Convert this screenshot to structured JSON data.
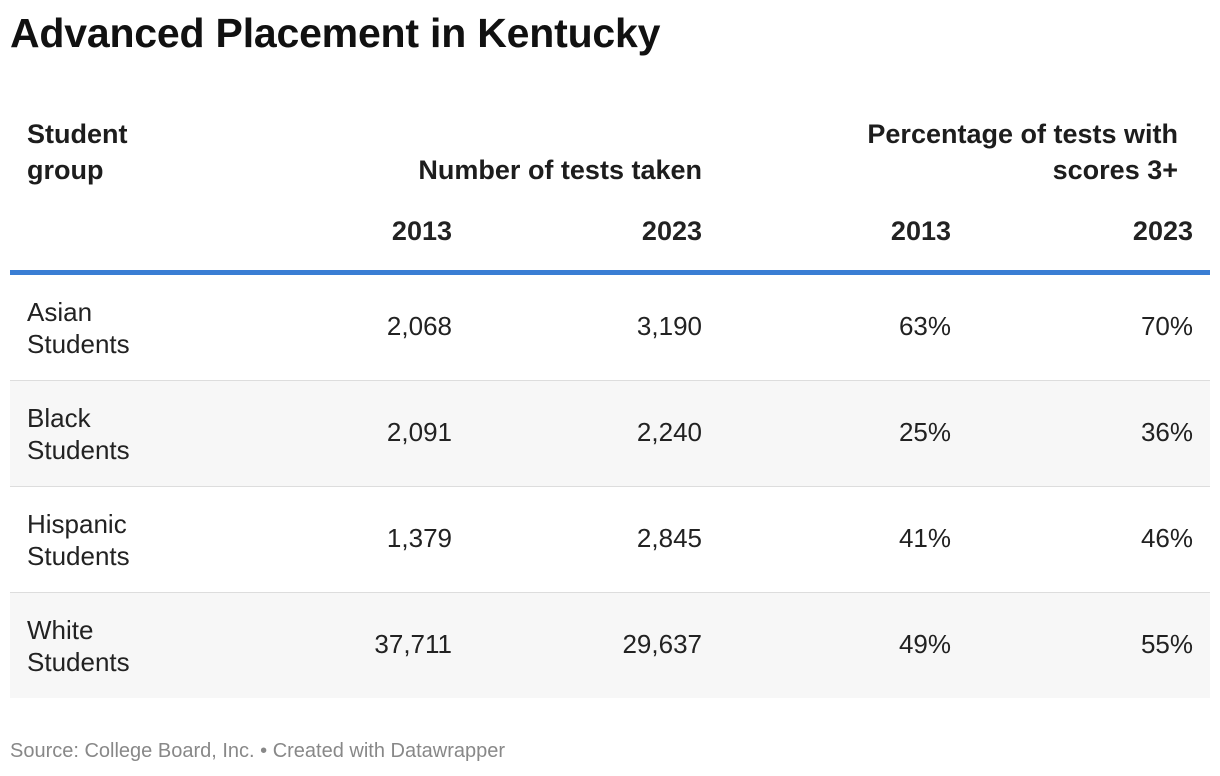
{
  "title": "Advanced Placement in Kentucky",
  "source": "Source: College Board, Inc. • Created with Datawrapper",
  "chart_data": {
    "type": "table",
    "title": "Advanced Placement in Kentucky",
    "header_groups": {
      "group": "Student group",
      "count": "Number of tests taken",
      "pct": "Percentage of tests with scores 3+"
    },
    "years": [
      "2013",
      "2023",
      "2013",
      "2023"
    ],
    "rows": [
      {
        "group": "Asian Students",
        "tests_2013": "2,068",
        "tests_2023": "3,190",
        "pct_2013": "63%",
        "pct_2023": "70%"
      },
      {
        "group": "Black Students",
        "tests_2013": "2,091",
        "tests_2023": "2,240",
        "pct_2013": "25%",
        "pct_2023": "36%"
      },
      {
        "group": "Hispanic Students",
        "tests_2013": "1,379",
        "tests_2023": "2,845",
        "pct_2013": "41%",
        "pct_2023": "46%"
      },
      {
        "group": "White Students",
        "tests_2013": "37,711",
        "tests_2023": "29,637",
        "pct_2013": "49%",
        "pct_2023": "55%"
      }
    ]
  },
  "colors": {
    "header_rule": "#3a7ed4",
    "alt_row": "#f7f7f7",
    "source_text": "#888888"
  }
}
